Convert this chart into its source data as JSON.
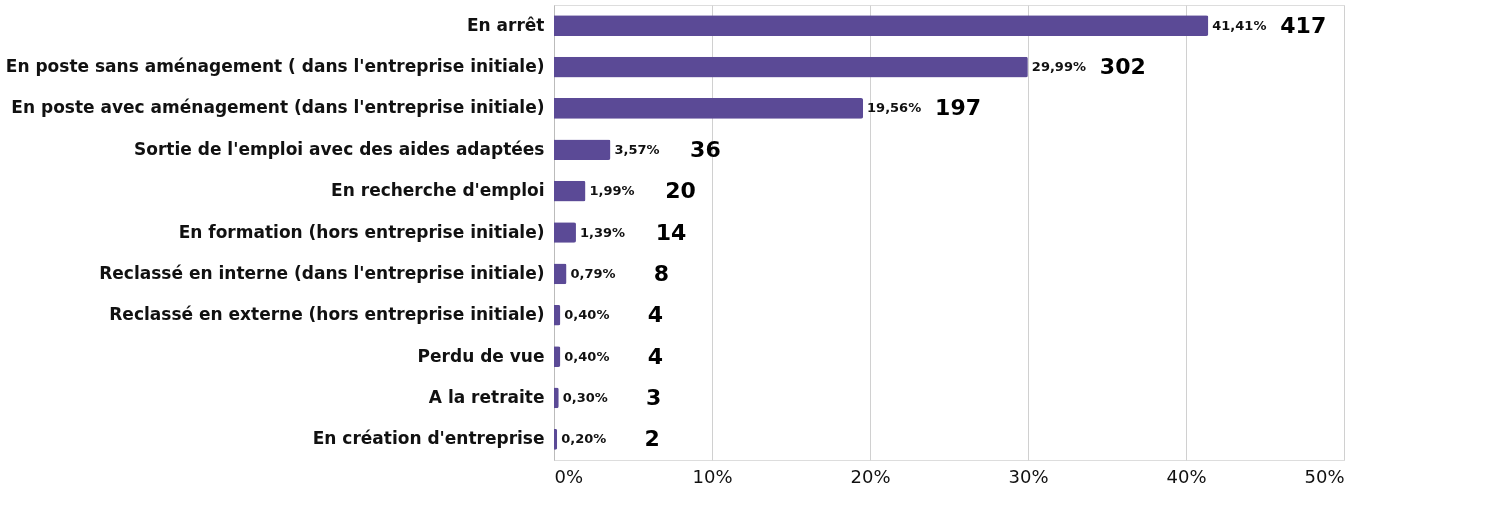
{
  "chart_data": {
    "type": "bar",
    "orientation": "horizontal",
    "categories": [
      "En arrêt",
      "En poste sans aménagement ( dans l'entreprise initiale)",
      "En poste avec aménagement (dans l'entreprise initiale)",
      "Sortie de l'emploi avec des aides adaptées",
      "En recherche d'emploi",
      "En formation (hors entreprise initiale)",
      "Reclassé en interne (dans l'entreprise initiale)",
      "Reclassé en externe (hors entreprise initiale)",
      "Perdu de vue",
      "A la retraite",
      "En création d'entreprise"
    ],
    "values": [
      41.41,
      29.99,
      19.56,
      3.57,
      1.99,
      1.39,
      0.79,
      0.4,
      0.4,
      0.3,
      0.2
    ],
    "value_labels": [
      "41,41%",
      "29,99%",
      "19,56%",
      "3,57%",
      "1,99%",
      "1,39%",
      "0,79%",
      "0,40%",
      "0,40%",
      "0,30%",
      "0,20%"
    ],
    "color": "#5b4a96",
    "xlim": [
      0,
      50
    ],
    "xticks": [
      {
        "value": 0,
        "label": "0%"
      },
      {
        "value": 10,
        "label": "10%"
      },
      {
        "value": 20,
        "label": "20%"
      },
      {
        "value": 30,
        "label": "30%"
      },
      {
        "value": 40,
        "label": "40%"
      },
      {
        "value": 50,
        "label": "50%"
      }
    ],
    "grid": "x",
    "annotations": [
      "417",
      "302",
      "197",
      "36",
      "20",
      "14",
      "8",
      "4",
      "4",
      "3",
      "2"
    ]
  }
}
